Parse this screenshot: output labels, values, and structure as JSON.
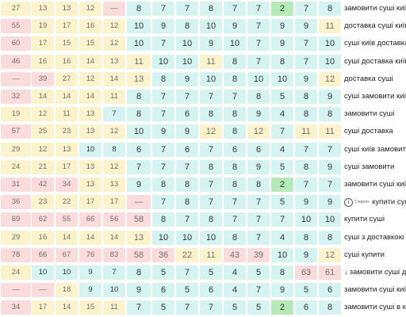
{
  "rows": [
    {
      "v": [
        "27",
        "13",
        "13",
        "12",
        "—",
        "8",
        "7",
        "7",
        "8",
        "7",
        "7",
        "2",
        "7",
        "8"
      ],
      "t": [
        "y",
        "y",
        "y",
        "y",
        "r",
        "c",
        "c",
        "c",
        "c",
        "c",
        "c",
        "g",
        "c",
        "c"
      ],
      "keyword": "замовити суші київ"
    },
    {
      "v": [
        "55",
        "19",
        "17",
        "16",
        "12",
        "10",
        "9",
        "8",
        "10",
        "9",
        "7",
        "9",
        "9",
        "11"
      ],
      "t": [
        "r",
        "y",
        "y",
        "y",
        "y",
        "c",
        "c",
        "c",
        "c",
        "c",
        "c",
        "c",
        "c",
        "y"
      ],
      "keyword": "доставка суші київ"
    },
    {
      "v": [
        "60",
        "17",
        "15",
        "15",
        "12",
        "10",
        "7",
        "10",
        "9",
        "10",
        "7",
        "9",
        "7",
        "10"
      ],
      "t": [
        "r",
        "y",
        "y",
        "y",
        "y",
        "c",
        "c",
        "c",
        "c",
        "c",
        "c",
        "c",
        "c",
        "c"
      ],
      "keyword": "суші київ доставка"
    },
    {
      "v": [
        "46",
        "16",
        "16",
        "14",
        "13",
        "11",
        "10",
        "10",
        "11",
        "8",
        "7",
        "8",
        "7",
        "10"
      ],
      "t": [
        "r",
        "y",
        "y",
        "y",
        "y",
        "y",
        "c",
        "c",
        "y",
        "c",
        "c",
        "c",
        "c",
        "c"
      ],
      "keyword": "суші доставка київ"
    },
    {
      "v": [
        "—",
        "39",
        "27",
        "12",
        "14",
        "13",
        "8",
        "9",
        "10",
        "8",
        "10",
        "10",
        "9",
        "12"
      ],
      "t": [
        "r",
        "r",
        "y",
        "y",
        "y",
        "y",
        "c",
        "c",
        "c",
        "c",
        "c",
        "c",
        "c",
        "y"
      ],
      "keyword": "доставка суші"
    },
    {
      "v": [
        "32",
        "14",
        "14",
        "14",
        "11",
        "8",
        "7",
        "7",
        "7",
        "7",
        "8",
        "5",
        "8",
        "9"
      ],
      "t": [
        "r",
        "y",
        "y",
        "y",
        "y",
        "c",
        "c",
        "c",
        "c",
        "c",
        "c",
        "c",
        "c",
        "c"
      ],
      "keyword": "суші замовити київ"
    },
    {
      "v": [
        "19",
        "12",
        "11",
        "13",
        "7",
        "8",
        "7",
        "6",
        "8",
        "8",
        "9",
        "4",
        "8",
        "8"
      ],
      "t": [
        "y",
        "y",
        "y",
        "y",
        "c",
        "c",
        "c",
        "c",
        "c",
        "c",
        "c",
        "c",
        "c",
        "c"
      ],
      "keyword": "замовити суші"
    },
    {
      "v": [
        "57",
        "25",
        "23",
        "13",
        "12",
        "10",
        "9",
        "9",
        "12",
        "8",
        "12",
        "7",
        "11",
        "11"
      ],
      "t": [
        "r",
        "y",
        "y",
        "y",
        "y",
        "c",
        "c",
        "c",
        "y",
        "c",
        "y",
        "c",
        "y",
        "y"
      ],
      "keyword": "суші доставка"
    },
    {
      "v": [
        "29",
        "12",
        "13",
        "10",
        "8",
        "6",
        "7",
        "6",
        "7",
        "6",
        "6",
        "4",
        "7",
        "7"
      ],
      "t": [
        "y",
        "y",
        "y",
        "c",
        "c",
        "c",
        "c",
        "c",
        "c",
        "c",
        "c",
        "c",
        "c",
        "c"
      ],
      "keyword": "суші київ замовити"
    },
    {
      "v": [
        "24",
        "21",
        "17",
        "13",
        "12",
        "7",
        "7",
        "7",
        "8",
        "8",
        "9",
        "5",
        "8",
        "9"
      ],
      "t": [
        "y",
        "y",
        "y",
        "y",
        "y",
        "c",
        "c",
        "c",
        "c",
        "c",
        "c",
        "c",
        "c",
        "c"
      ],
      "keyword": "суші замовити"
    },
    {
      "v": [
        "31",
        "42",
        "34",
        "13",
        "13",
        "9",
        "8",
        "8",
        "7",
        "8",
        "8",
        "2",
        "7",
        "7"
      ],
      "t": [
        "r",
        "r",
        "r",
        "y",
        "y",
        "c",
        "c",
        "c",
        "c",
        "c",
        "c",
        "g",
        "c",
        "c"
      ],
      "keyword": "замовити суші київ з доставкою"
    },
    {
      "v": [
        "36",
        "23",
        "22",
        "17",
        "17",
        "—",
        "7",
        "8",
        "7",
        "7",
        "7",
        "5",
        "9",
        "9"
      ],
      "t": [
        "r",
        "y",
        "y",
        "y",
        "y",
        "r",
        "c",
        "c",
        "c",
        "c",
        "c",
        "c",
        "c",
        "c"
      ],
      "keyword": "купити суші київ",
      "note": "2 марта",
      "icon": "info-icon"
    },
    {
      "v": [
        "69",
        "62",
        "55",
        "66",
        "56",
        "58",
        "8",
        "7",
        "8",
        "7",
        "7",
        "7",
        "10",
        "10"
      ],
      "t": [
        "r",
        "r",
        "r",
        "r",
        "r",
        "r",
        "c",
        "c",
        "c",
        "c",
        "c",
        "c",
        "c",
        "c"
      ],
      "keyword": "купити суші"
    },
    {
      "v": [
        "29",
        "16",
        "14",
        "14",
        "14",
        "13",
        "10",
        "10",
        "10",
        "8",
        "7",
        "4",
        "8",
        "8"
      ],
      "t": [
        "y",
        "y",
        "y",
        "y",
        "y",
        "y",
        "c",
        "c",
        "c",
        "c",
        "c",
        "c",
        "c",
        "c"
      ],
      "keyword": "суші з доставкою київ"
    },
    {
      "v": [
        "78",
        "66",
        "67",
        "76",
        "83",
        "58",
        "36",
        "22",
        "11",
        "43",
        "39",
        "10",
        "9",
        "12"
      ],
      "t": [
        "r",
        "r",
        "r",
        "r",
        "r",
        "r",
        "r",
        "y",
        "y",
        "r",
        "r",
        "c",
        "c",
        "y"
      ],
      "keyword": "суші купити"
    },
    {
      "v": [
        "24",
        "10",
        "10",
        "9",
        "7",
        "8",
        "5",
        "7",
        "5",
        "4",
        "5",
        "8",
        "63",
        "61"
      ],
      "t": [
        "y",
        "c",
        "c",
        "c",
        "c",
        "c",
        "c",
        "c",
        "c",
        "c",
        "c",
        "c",
        "r",
        "r"
      ],
      "keyword": "замовити суші додому",
      "icon": "arrow-down-icon",
      "icon_glyph": "↓"
    },
    {
      "v": [
        "—",
        "—",
        "18",
        "9",
        "10",
        "9",
        "6",
        "5",
        "6",
        "4",
        "7",
        "9",
        "5",
        "6"
      ],
      "t": [
        "r",
        "r",
        "y",
        "c",
        "c",
        "c",
        "c",
        "c",
        "c",
        "c",
        "c",
        "c",
        "c",
        "c"
      ],
      "keyword": "замовити суші київ недорого"
    },
    {
      "v": [
        "34",
        "17",
        "14",
        "15",
        "11",
        "7",
        "5",
        "7",
        "7",
        "5",
        "5",
        "2",
        "6",
        "8"
      ],
      "t": [
        "r",
        "y",
        "y",
        "y",
        "y",
        "c",
        "c",
        "c",
        "c",
        "c",
        "c",
        "g",
        "c",
        "c"
      ],
      "keyword": "замовити суші в києві"
    }
  ],
  "colors": {
    "yellow": "#fbf3cc",
    "red": "#fbdcdc",
    "cyan": "#d5f3f0",
    "green": "#b5e9b5"
  }
}
